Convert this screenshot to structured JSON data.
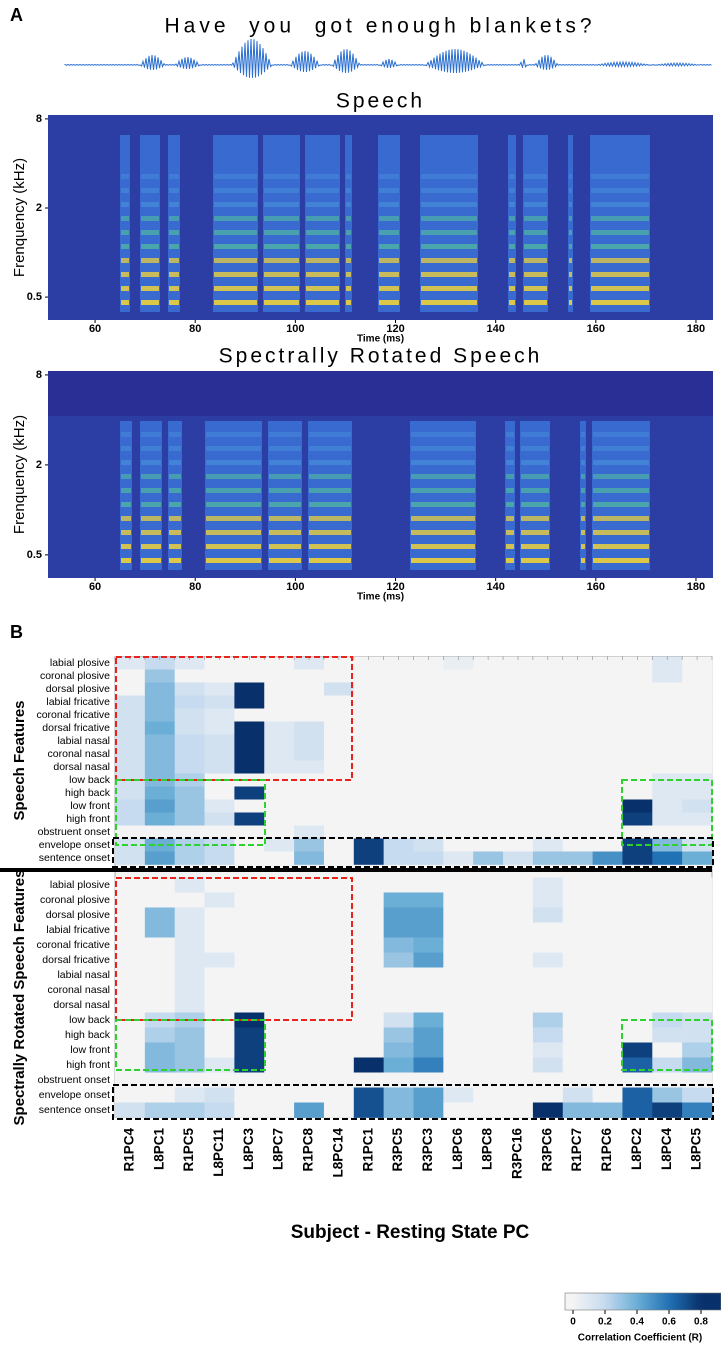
{
  "panel_labels": [
    "A",
    "B"
  ],
  "sentence": "Have  you  got enough blankets?",
  "chart_data": [
    {
      "type": "spectrogram",
      "title": "Speech",
      "ylabel": "Frenquency (kHz)",
      "xlabel": "Time (ms)",
      "xlim": [
        50.6,
        183.4
      ],
      "xticks": [
        60,
        80,
        100,
        120,
        140,
        160,
        180
      ],
      "ylim": [
        0.35,
        8.5
      ],
      "yticks": [
        0.5,
        2,
        8
      ],
      "yscale": "log"
    },
    {
      "type": "spectrogram",
      "title": "Spectrally Rotated Speech",
      "ylabel": "Frenquency (kHz)",
      "xlabel": "Time (ms)",
      "xlim": [
        50.6,
        183.4
      ],
      "xticks": [
        60,
        80,
        100,
        120,
        140,
        160,
        180
      ],
      "ylim": [
        0.35,
        8.5
      ],
      "yticks": [
        0.5,
        2,
        8
      ],
      "yscale": "log"
    },
    {
      "type": "heatmap",
      "xlabel": "Subject - Resting State PC",
      "categories": [
        "R1PC4",
        "L8PC1",
        "R1PC5",
        "L8PC11",
        "L8PC3",
        "L8PC7",
        "R1PC8",
        "L8PC14",
        "R1PC1",
        "R3PC5",
        "R3PC3",
        "L8PC6",
        "L8PC8",
        "R3PC16",
        "R3PC6",
        "R1PC7",
        "R1PC6",
        "L8PC2",
        "L8PC4",
        "L8PC5"
      ],
      "row_groups": [
        {
          "name": "Speech Features",
          "rows": [
            "labial plosive",
            "coronal plosive",
            "dorsal plosive",
            "labial fricative",
            "coronal fricative",
            "dorsal fricative",
            "labial nasal",
            "coronal nasal",
            "dorsal nasal",
            "low back",
            "high back",
            "low front",
            "high front",
            "obstruent onset",
            "envelope onset",
            "sentence onset"
          ],
          "values": [
            [
              0.1,
              0.2,
              0.1,
              0,
              0,
              0,
              0.1,
              0,
              0,
              0,
              0,
              0.05,
              0,
              0,
              0,
              0,
              0,
              0,
              0.1,
              0
            ],
            [
              0,
              0.3,
              0,
              0,
              0,
              0,
              0,
              0,
              0,
              0,
              0,
              0,
              0,
              0,
              0,
              0,
              0,
              0,
              0.1,
              0
            ],
            [
              0,
              0.35,
              0.15,
              0.1,
              0.8,
              0,
              0,
              0.15,
              0,
              0,
              0,
              0,
              0,
              0,
              0,
              0,
              0,
              0,
              0,
              0
            ],
            [
              0.15,
              0.35,
              0.2,
              0.15,
              0.8,
              0,
              0,
              0,
              0,
              0,
              0,
              0,
              0,
              0,
              0,
              0,
              0,
              0,
              0,
              0
            ],
            [
              0.15,
              0.35,
              0.15,
              0.1,
              0,
              0,
              0,
              0,
              0,
              0,
              0,
              0,
              0,
              0,
              0,
              0,
              0,
              0,
              0,
              0
            ],
            [
              0.15,
              0.4,
              0.15,
              0.1,
              0.8,
              0.1,
              0.15,
              0,
              0,
              0,
              0,
              0,
              0,
              0,
              0,
              0,
              0,
              0,
              0,
              0
            ],
            [
              0.15,
              0.35,
              0.2,
              0.15,
              0.8,
              0.1,
              0.15,
              0,
              0,
              0,
              0,
              0,
              0,
              0,
              0,
              0,
              0,
              0,
              0,
              0
            ],
            [
              0.15,
              0.35,
              0.2,
              0.15,
              0.8,
              0.1,
              0.15,
              0,
              0,
              0,
              0,
              0,
              0,
              0,
              0,
              0,
              0,
              0,
              0,
              0
            ],
            [
              0.15,
              0.35,
              0.2,
              0.15,
              0.8,
              0.1,
              0.1,
              0,
              0,
              0,
              0,
              0,
              0,
              0,
              0,
              0,
              0,
              0,
              0,
              0
            ],
            [
              0.15,
              0.35,
              0.25,
              0,
              0,
              0,
              0,
              0,
              0,
              0,
              0,
              0,
              0,
              0,
              0,
              0,
              0,
              0,
              0.1,
              0.1
            ],
            [
              0.15,
              0.4,
              0.3,
              0,
              0.75,
              0,
              0,
              0,
              0,
              0,
              0,
              0,
              0,
              0,
              0,
              0,
              0,
              0,
              0.1,
              0.1
            ],
            [
              0.2,
              0.45,
              0.3,
              0.1,
              0,
              0,
              0,
              0,
              0,
              0,
              0,
              0,
              0,
              0,
              0,
              0,
              0,
              0.8,
              0.1,
              0.15
            ],
            [
              0.2,
              0.4,
              0.3,
              0.15,
              0.75,
              0,
              0,
              0,
              0,
              0,
              0,
              0,
              0,
              0,
              0,
              0,
              0,
              0.75,
              0.1,
              0.1
            ],
            [
              0,
              0,
              0,
              0,
              0,
              0,
              0.1,
              0,
              0,
              0,
              0,
              0,
              0,
              0,
              0,
              0,
              0,
              0,
              0,
              0
            ],
            [
              0.15,
              0.4,
              0.25,
              0.2,
              0,
              0.1,
              0.3,
              0,
              0.75,
              0.2,
              0.15,
              0,
              0,
              0,
              0.1,
              0,
              0,
              0.75,
              0.35,
              0.15
            ],
            [
              0.15,
              0.45,
              0.25,
              0.2,
              0,
              0,
              0.35,
              0,
              0.75,
              0.2,
              0.2,
              0.1,
              0.3,
              0.15,
              0.3,
              0.3,
              0.5,
              0.75,
              0.6,
              0.4
            ]
          ]
        },
        {
          "name": "Spectrally Rotated Speech Features",
          "rows": [
            "labial plosive",
            "coronal plosive",
            "dorsal plosive",
            "labial fricative",
            "coronal fricative",
            "dorsal fricative",
            "labial nasal",
            "coronal nasal",
            "dorsal nasal",
            "low back",
            "high back",
            "low front",
            "high front",
            "obstruent onset",
            "envelope onset",
            "sentence onset"
          ],
          "values": [
            [
              0,
              0,
              0.1,
              0,
              0,
              0,
              0,
              0,
              0,
              0,
              0,
              0,
              0,
              0,
              0.1,
              0,
              0,
              0,
              0,
              0
            ],
            [
              0,
              0,
              0,
              0.1,
              0,
              0,
              0,
              0,
              0,
              0.4,
              0.4,
              0,
              0,
              0,
              0.1,
              0,
              0,
              0,
              0,
              0
            ],
            [
              0,
              0.35,
              0.1,
              0,
              0,
              0,
              0,
              0,
              0,
              0.45,
              0.45,
              0,
              0,
              0,
              0.15,
              0,
              0,
              0,
              0,
              0
            ],
            [
              0,
              0.35,
              0.1,
              0,
              0,
              0,
              0,
              0,
              0,
              0.45,
              0.45,
              0,
              0,
              0,
              0,
              0,
              0,
              0,
              0,
              0
            ],
            [
              0,
              0,
              0.1,
              0,
              0,
              0,
              0,
              0,
              0,
              0.35,
              0.4,
              0,
              0,
              0,
              0,
              0,
              0,
              0,
              0,
              0
            ],
            [
              0,
              0,
              0.1,
              0.1,
              0,
              0,
              0,
              0,
              0,
              0.3,
              0.45,
              0,
              0,
              0,
              0.1,
              0,
              0,
              0,
              0,
              0
            ],
            [
              0,
              0,
              0.1,
              0,
              0,
              0,
              0,
              0,
              0,
              0,
              0,
              0,
              0,
              0,
              0,
              0,
              0,
              0,
              0,
              0
            ],
            [
              0,
              0,
              0.1,
              0,
              0,
              0,
              0,
              0,
              0,
              0,
              0,
              0,
              0,
              0,
              0,
              0,
              0,
              0,
              0,
              0
            ],
            [
              0,
              0,
              0.1,
              0,
              0,
              0,
              0,
              0,
              0,
              0,
              0,
              0,
              0,
              0,
              0,
              0,
              0,
              0,
              0,
              0
            ],
            [
              0,
              0.2,
              0.25,
              0,
              0.8,
              0,
              0,
              0,
              0,
              0.15,
              0.4,
              0,
              0,
              0,
              0.25,
              0,
              0,
              0,
              0.2,
              0.15
            ],
            [
              0,
              0.25,
              0.3,
              0,
              0.75,
              0,
              0,
              0,
              0,
              0.3,
              0.45,
              0,
              0,
              0,
              0.2,
              0,
              0,
              0,
              0.15,
              0.15
            ],
            [
              0,
              0.35,
              0.3,
              0,
              0.75,
              0,
              0,
              0,
              0,
              0.35,
              0.45,
              0,
              0,
              0,
              0.1,
              0,
              0,
              0.75,
              0,
              0.25
            ],
            [
              0,
              0.35,
              0.3,
              0.1,
              0.75,
              0,
              0,
              0,
              0.8,
              0.4,
              0.55,
              0,
              0,
              0,
              0.15,
              0,
              0,
              0.65,
              0.2,
              0.35
            ],
            [
              0,
              0,
              0,
              0,
              0,
              0,
              0,
              0,
              0,
              0,
              0,
              0,
              0,
              0,
              0,
              0,
              0,
              0,
              0,
              0
            ],
            [
              0,
              0,
              0.1,
              0.15,
              0,
              0,
              0,
              0,
              0.7,
              0.35,
              0.45,
              0.1,
              0,
              0,
              0,
              0.15,
              0,
              0.65,
              0.3,
              0.2
            ],
            [
              0.15,
              0.25,
              0.25,
              0.2,
              0,
              0,
              0.45,
              0,
              0.7,
              0.35,
              0.45,
              0,
              0,
              0,
              0.9,
              0.35,
              0.35,
              0.65,
              0.75,
              0.55
            ]
          ]
        }
      ],
      "colorbar": {
        "label": "Correlation Coefficient (R)",
        "lim": [
          -0.05,
          0.925
        ],
        "ticks": [
          0,
          0.2,
          0.4,
          0.6,
          0.8
        ],
        "colors": [
          "#f4f4f4",
          "#c6dbef",
          "#6baed6",
          "#2171b5",
          "#08306b"
        ]
      }
    }
  ]
}
